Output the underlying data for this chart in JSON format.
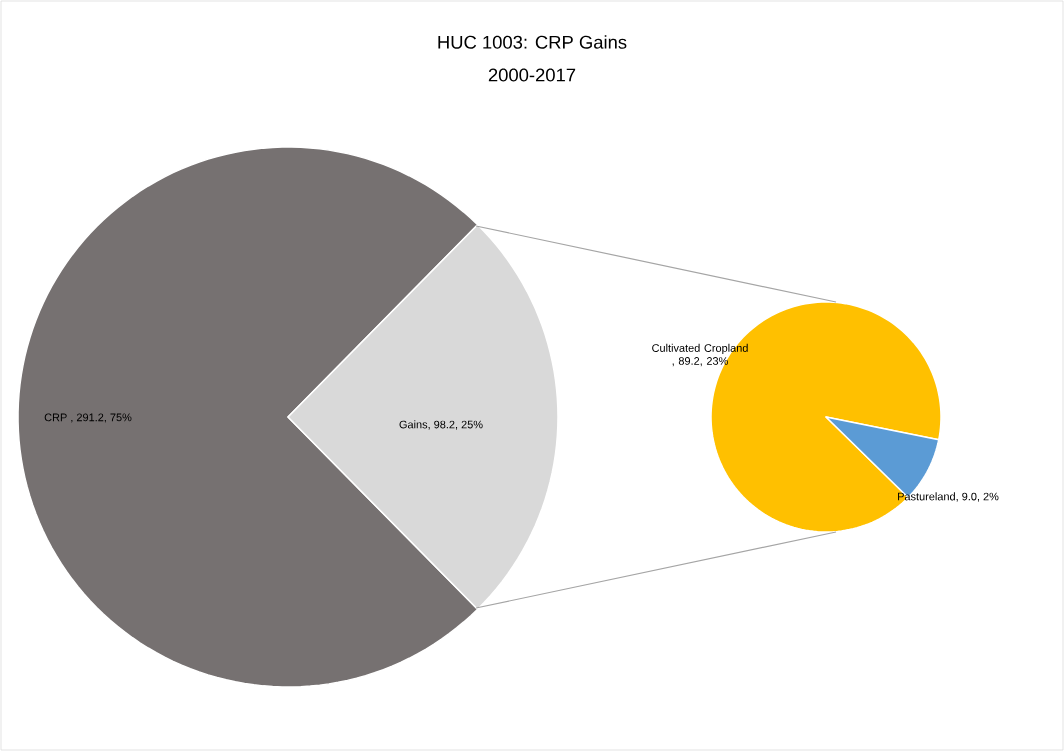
{
  "chart_data": [
    {
      "type": "pie",
      "title": "HUC 1003: CRP Gains",
      "subtitle": "2000-2017",
      "categories": [
        "CRP ",
        "Gains"
      ],
      "values": [
        291.2,
        98.2
      ],
      "colors": [
        "#767171",
        "#d9d9d9"
      ],
      "value_labels": [
        ", 291.2, 75%",
        ", 98.2, 25%"
      ]
    },
    {
      "type": "pie",
      "categories": [
        "Cultivated Cropland ",
        "Pastureland"
      ],
      "values": [
        89.2,
        9.0
      ],
      "colors": [
        "#ffc000",
        "#5b9bd5"
      ],
      "value_labels": [
        ", 89.2, 23%",
        ", 9.0, 2%"
      ]
    }
  ]
}
